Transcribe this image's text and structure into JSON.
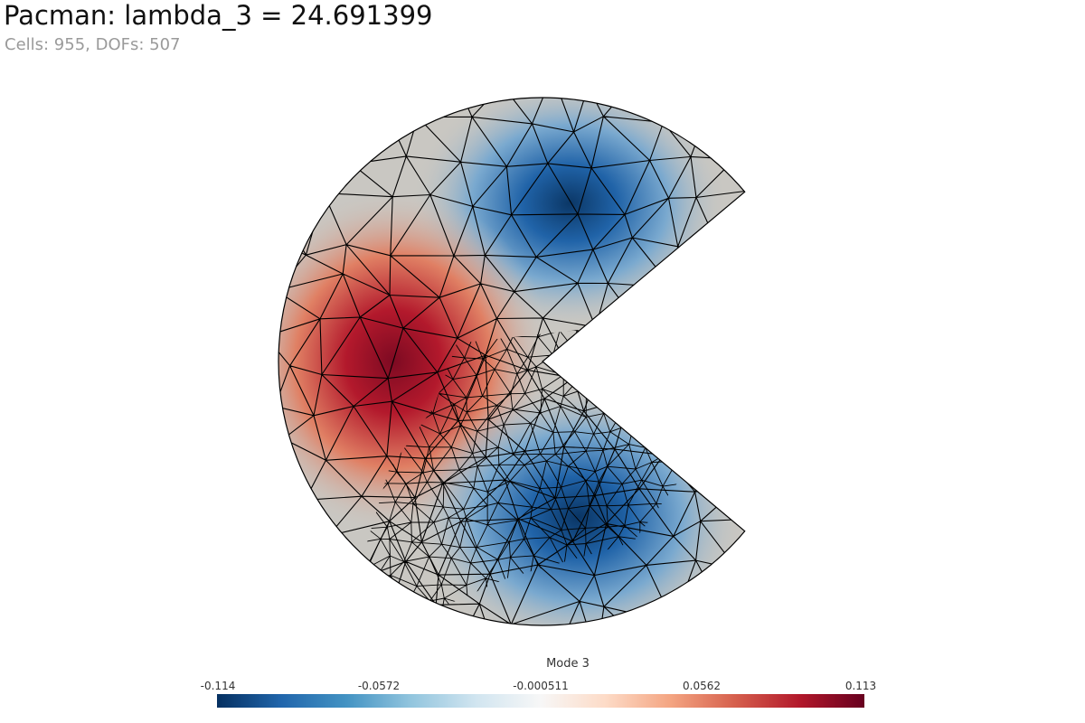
{
  "header": {
    "title": "Pacman: lambda_3 = 24.691399",
    "subtitle": "Cells: 955, DOFs: 507"
  },
  "colorbar": {
    "title": "Mode 3",
    "ticks": [
      "-0.114",
      "-0.0572",
      "-0.000511",
      "0.0562",
      "0.113"
    ],
    "range": [
      -0.114,
      0.113
    ],
    "colormap": [
      "#053061",
      "#2166ac",
      "#4393c3",
      "#92c5de",
      "#d1e5f0",
      "#f7f7f7",
      "#fddbc7",
      "#f4a582",
      "#d6604d",
      "#b2182b",
      "#67001f"
    ]
  },
  "field": {
    "background_color": "#c9c7c2",
    "extrema": [
      {
        "kind": "min",
        "label": "upper-lobe"
      },
      {
        "kind": "max",
        "label": "left-lobe"
      },
      {
        "kind": "min",
        "label": "lower-lobe"
      }
    ]
  },
  "mesh": {
    "edge_color": "#000000"
  }
}
